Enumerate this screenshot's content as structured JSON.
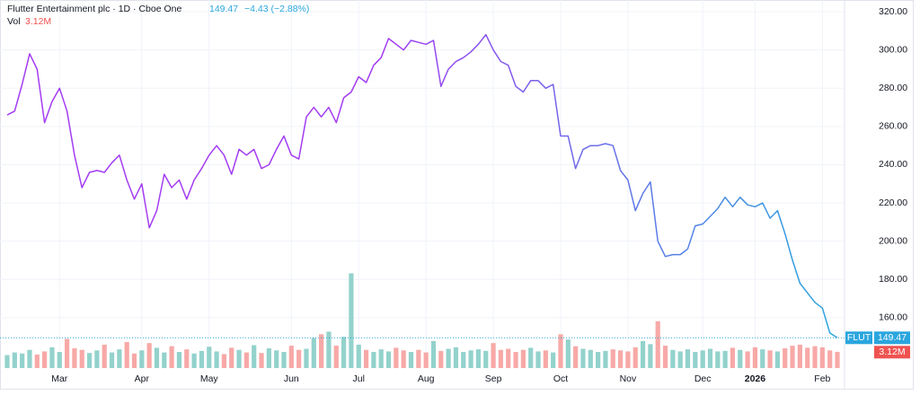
{
  "header": {
    "title": "Flutter Entertainment plc · 1D · Cboe One",
    "change": "−4.43 (−2.88%)",
    "vol_title": "Vol",
    "vol_value": "3.12M",
    "symbol": "FLUT"
  },
  "chart_data": {
    "type": "line",
    "categories": [
      null,
      null,
      null,
      null,
      null,
      null,
      null,
      "Mar",
      null,
      null,
      null,
      null,
      null,
      null,
      null,
      null,
      null,
      null,
      "Apr",
      null,
      null,
      null,
      null,
      null,
      null,
      null,
      null,
      "May",
      null,
      null,
      null,
      null,
      null,
      null,
      null,
      null,
      null,
      null,
      "Jun",
      null,
      null,
      null,
      null,
      null,
      null,
      null,
      null,
      "Jul",
      null,
      null,
      null,
      null,
      null,
      null,
      null,
      null,
      "Aug",
      null,
      null,
      null,
      null,
      null,
      null,
      null,
      null,
      "Sep",
      null,
      null,
      null,
      null,
      null,
      null,
      null,
      null,
      "Oct",
      null,
      null,
      null,
      null,
      null,
      null,
      null,
      null,
      "Nov",
      null,
      null,
      null,
      null,
      null,
      null,
      null,
      null,
      null,
      "Dec",
      null,
      null,
      null,
      null,
      null,
      null,
      "2026",
      null,
      null,
      null,
      null,
      null,
      null,
      null,
      null,
      "Feb",
      null,
      null
    ],
    "series": [
      {
        "name": "FLUT",
        "gradient": [
          "#a33cf2",
          "#2ba6de"
        ],
        "values": [
          266,
          268,
          282,
          298,
          290,
          262,
          273,
          280,
          268,
          245,
          228,
          236,
          237,
          236,
          241,
          245,
          232,
          222,
          230,
          207,
          216,
          235,
          228,
          232,
          222,
          232,
          238,
          245,
          250,
          245,
          235,
          248,
          245,
          248,
          238,
          240,
          248,
          255,
          245,
          243,
          265,
          270,
          265,
          270,
          262,
          275,
          278,
          286,
          283,
          292,
          296,
          306,
          303,
          300,
          305,
          304,
          303,
          305,
          281,
          290,
          294,
          296,
          299,
          303,
          308,
          300,
          294,
          292,
          281,
          278,
          284,
          284,
          280,
          282,
          255,
          255,
          238,
          248,
          250,
          250,
          251,
          250,
          237,
          232,
          216,
          225,
          231,
          200,
          192,
          193,
          193,
          196,
          208,
          209,
          213,
          217,
          223,
          218,
          223,
          219,
          218,
          220,
          212,
          216,
          204,
          190,
          178,
          173,
          168,
          165,
          152,
          149.47
        ]
      },
      {
        "name": "Vol",
        "colors": [
          "#93d2cc",
          "#f7a9a7"
        ],
        "values": [
          2.5,
          3,
          2.8,
          3.5,
          2.6,
          3.2,
          4,
          3.1,
          5.6,
          3.8,
          3.5,
          2.9,
          3.4,
          4.5,
          3,
          3.6,
          5,
          2.8,
          3.4,
          4.8,
          3.9,
          3,
          4.2,
          3.1,
          3.6,
          2.8,
          3.3,
          4.1,
          3.2,
          2.7,
          3.9,
          3.5,
          3,
          4.4,
          2.9,
          3.8,
          3.4,
          3.1,
          4.3,
          3.5,
          3.7,
          5.8,
          6.5,
          7,
          4.3,
          6,
          18.2,
          4.5,
          3.5,
          3.1,
          3.6,
          3.2,
          3.9,
          3.4,
          3.1,
          3.5,
          3,
          5.2,
          3.3,
          3.7,
          4,
          3.1,
          3.4,
          3.6,
          3.3,
          4.8,
          3.5,
          3.7,
          3.1,
          3.5,
          3.9,
          3.2,
          3.4,
          3,
          6.5,
          5.5,
          4.2,
          3.7,
          3.5,
          3.1,
          3.3,
          3.6,
          3.4,
          3.2,
          4,
          5.2,
          4.6,
          9,
          4.3,
          3.5,
          3.2,
          3.6,
          3.1,
          3.4,
          3.7,
          3.2,
          3.3,
          3.9,
          3.5,
          3.2,
          4,
          3.6,
          3.4,
          3.2,
          3.8,
          4.3,
          4.5,
          3.9,
          4.2,
          4,
          3.4,
          3.12
        ]
      }
    ],
    "ylim": [
      123.3,
      323.8
    ],
    "yticks": [
      {
        "value": 160,
        "label": "160.00"
      },
      {
        "value": 180,
        "label": "180.00"
      },
      {
        "value": 200,
        "label": "200.00"
      },
      {
        "value": 220,
        "label": "220.00"
      },
      {
        "value": 240,
        "label": "240.00"
      },
      {
        "value": 260,
        "label": "260.00"
      },
      {
        "value": 280,
        "label": "280.00"
      },
      {
        "value": 300,
        "label": "300.00"
      },
      {
        "value": 320,
        "label": "320.00"
      }
    ],
    "grid": true
  }
}
